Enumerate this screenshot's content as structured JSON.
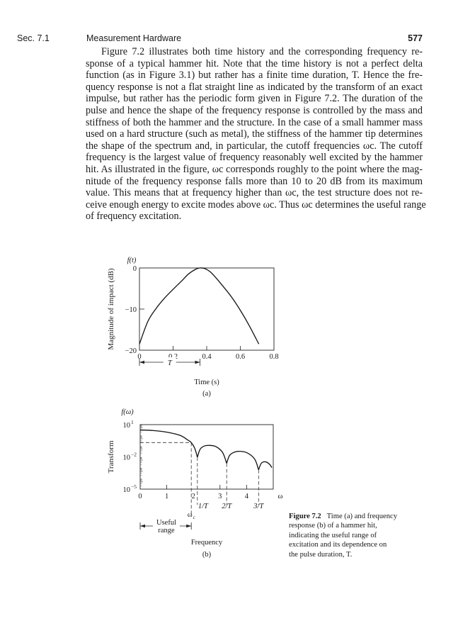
{
  "header": {
    "section": "Sec. 7.1",
    "title": "Measurement Hardware",
    "page_number": "577"
  },
  "body": {
    "lines": [
      "Figure 7.2 illustrates both time history and the corresponding frequency re-",
      "sponse of a typical hammer hit. Note that the time history is not a perfect delta",
      "function (as in Figure 3.1) but rather has a finite time duration, T. Hence the fre-",
      "quency response is not a flat straight line as indicated by the transform of an exact",
      "impulse, but rather has the periodic form given in Figure 7.2. The duration of the",
      "pulse and hence the shape of the frequency response is controlled by the mass and",
      "stiffness of both the hammer and the structure. In the case of a small hammer mass",
      "used on a hard structure (such as metal), the stiffness of the hammer tip determines",
      "the shape of the spectrum and, in particular, the cutoff frequencies ωc. The cutoff",
      "frequency is the largest value of frequency reasonably well excited by the hammer",
      "hit. As illustrated in the figure, ωc corresponds roughly to the point where the mag-",
      "nitude of the frequency response falls more than 10 to 20 dB from its maximum",
      "value. This means that at frequency higher than ωc, the test structure does not re-",
      "ceive enough energy to excite modes above ωc. Thus ωc determines the useful range",
      "of frequency excitation."
    ]
  },
  "caption": {
    "label": "Figure 7.2",
    "lines": [
      "Time (a) and frequency",
      "response (b) of a hammer hit,",
      "indicating the useful range of",
      "excitation and its dependence on",
      "the pulse duration, T."
    ]
  },
  "chart_data": [
    {
      "type": "line",
      "panel_label": "(a)",
      "function_label": "f(t)",
      "xlabel": "Time (s)",
      "ylabel": "Magnitude of impact (dB)",
      "xlim": [
        0,
        0.8
      ],
      "ylim": [
        -20,
        0
      ],
      "x_ticks": [
        "0",
        "0.2",
        "0.4",
        "0.6",
        "0.8"
      ],
      "y_ticks": [
        "0",
        "−10",
        "−20"
      ],
      "grid": false,
      "annotation": {
        "text": "T",
        "from": 0,
        "to": 0.36
      },
      "series": [
        {
          "x": [
            0,
            0.05,
            0.1,
            0.15,
            0.2,
            0.25,
            0.3,
            0.36,
            0.42,
            0.5,
            0.55,
            0.6,
            0.65,
            0.71
          ],
          "y": [
            -18.5,
            -13,
            -9.8,
            -7.3,
            -5.2,
            -3.2,
            -1.2,
            0,
            -0.9,
            -4.6,
            -7.2,
            -10.3,
            -13.8,
            -18.5
          ]
        }
      ]
    },
    {
      "type": "line",
      "panel_label": "(b)",
      "function_label": "f(ω)",
      "xlabel": "Frequency",
      "ylabel": "Transform",
      "xlim": [
        0,
        5
      ],
      "ylim": [
        1e-05,
        10
      ],
      "yscale": "log",
      "x_ticks": [
        "0",
        "1",
        "2",
        "3",
        "4",
        "ω"
      ],
      "y_ticks": [
        {
          "base": "10",
          "exp": "1"
        },
        {
          "base": "10",
          "exp": "−2"
        },
        {
          "base": "10",
          "exp": "−5"
        }
      ],
      "grid": false,
      "markers": [
        {
          "label": "1/T",
          "x": 2.15
        },
        {
          "label": "2/T",
          "x": 3.25
        },
        {
          "label": "3/T",
          "x": 4.45
        }
      ],
      "cutoff": {
        "label": "ω",
        "sub": "c",
        "x": 1.92,
        "y": 0.214
      },
      "useful_range": {
        "line1": "Useful",
        "line2": "range"
      },
      "series": [
        {
          "segments": [
            {
              "x": [
                0,
                0.5,
                1,
                1.5,
                1.8,
                1.92,
                2.05,
                2.15
              ],
              "y": [
                3.16,
                2.82,
                2.0,
                1.0,
                0.355,
                0.214,
                0.063,
                0.0093
              ]
            },
            {
              "x": [
                2.15,
                2.25,
                2.4,
                2.6,
                2.85,
                3.1,
                3.25
              ],
              "y": [
                0.0093,
                0.05,
                0.1,
                0.117,
                0.089,
                0.025,
                0.0025
              ]
            },
            {
              "x": [
                3.25,
                3.35,
                3.5,
                3.7,
                4.0,
                4.3,
                4.45
              ],
              "y": [
                0.0025,
                0.0126,
                0.025,
                0.033,
                0.025,
                0.0063,
                0.00063
              ]
            },
            {
              "x": [
                4.45,
                4.55,
                4.7,
                4.85,
                4.95
              ],
              "y": [
                0.00063,
                0.0025,
                0.0035,
                0.0022,
                0.001
              ]
            }
          ]
        }
      ]
    }
  ]
}
